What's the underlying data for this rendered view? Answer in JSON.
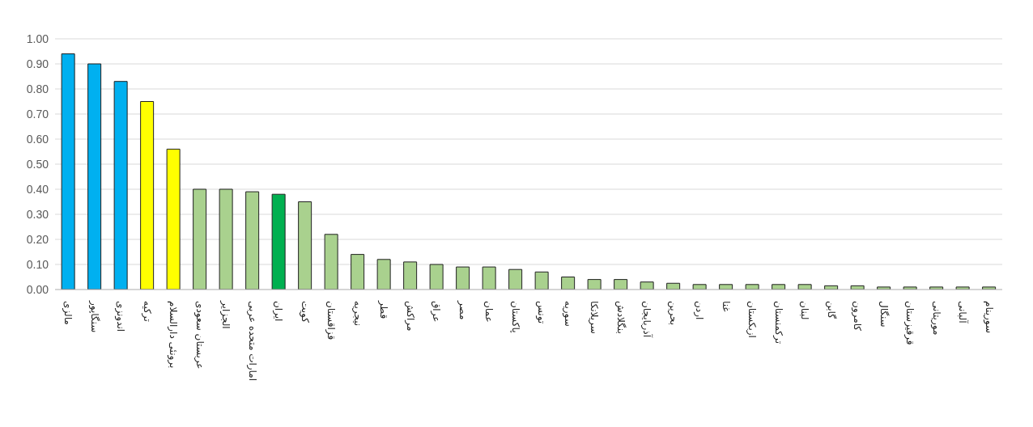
{
  "chart_data": {
    "type": "bar",
    "categories": [
      "مالزی",
      "سنگاپور",
      "اندونزی",
      "ترکیه",
      "برونئی دارالسلام",
      "عربستان سعودی",
      "الجزایر",
      "امارات متحده عربی",
      "ایران",
      "کویت",
      "قزاقستان",
      "نیجریه",
      "قطر",
      "مراکش",
      "عراق",
      "مصر",
      "عمان",
      "پاکستان",
      "تونس",
      "سوریه",
      "سریلانکا",
      "بنگلادش",
      "آذربایجان",
      "بحرین",
      "اردن",
      "غنا",
      "ازبکستان",
      "ترکمنستان",
      "لبنان",
      "گابن",
      "کامرون",
      "سنگال",
      "قرقیزستان",
      "موریتانی",
      "آلبانی",
      "سورینام"
    ],
    "values": [
      0.94,
      0.9,
      0.83,
      0.75,
      0.56,
      0.4,
      0.4,
      0.39,
      0.38,
      0.35,
      0.22,
      0.14,
      0.12,
      0.11,
      0.1,
      0.09,
      0.09,
      0.08,
      0.07,
      0.05,
      0.04,
      0.04,
      0.03,
      0.025,
      0.02,
      0.02,
      0.02,
      0.02,
      0.02,
      0.015,
      0.015,
      0.01,
      0.01,
      0.01,
      0.01,
      0.01
    ],
    "colors": [
      "#00b0f0",
      "#00b0f0",
      "#00b0f0",
      "#ffff00",
      "#ffff00",
      "#a9d18e",
      "#a9d18e",
      "#a9d18e",
      "#00b050",
      "#a9d18e",
      "#a9d18e",
      "#a9d18e",
      "#a9d18e",
      "#a9d18e",
      "#a9d18e",
      "#a9d18e",
      "#a9d18e",
      "#a9d18e",
      "#a9d18e",
      "#a9d18e",
      "#a9d18e",
      "#a9d18e",
      "#a9d18e",
      "#a9d18e",
      "#a9d18e",
      "#a9d18e",
      "#a9d18e",
      "#a9d18e",
      "#a9d18e",
      "#a9d18e",
      "#a9d18e",
      "#a9d18e",
      "#a9d18e",
      "#a9d18e",
      "#a9d18e",
      "#a9d18e"
    ],
    "ylim": [
      0,
      1
    ],
    "yticks": [
      {
        "value": 0,
        "label": "0.00"
      },
      {
        "value": 0.1,
        "label": "0.10"
      },
      {
        "value": 0.2,
        "label": "0.20"
      },
      {
        "value": 0.3,
        "label": "0.30"
      },
      {
        "value": 0.4,
        "label": "0.40"
      },
      {
        "value": 0.5,
        "label": "0.50"
      },
      {
        "value": 0.6,
        "label": "0.60"
      },
      {
        "value": 0.7,
        "label": "0.70"
      },
      {
        "value": 0.8,
        "label": "0.80"
      },
      {
        "value": 0.9,
        "label": "0.90"
      },
      {
        "value": 1,
        "label": "1.00"
      }
    ],
    "grid": "y"
  }
}
